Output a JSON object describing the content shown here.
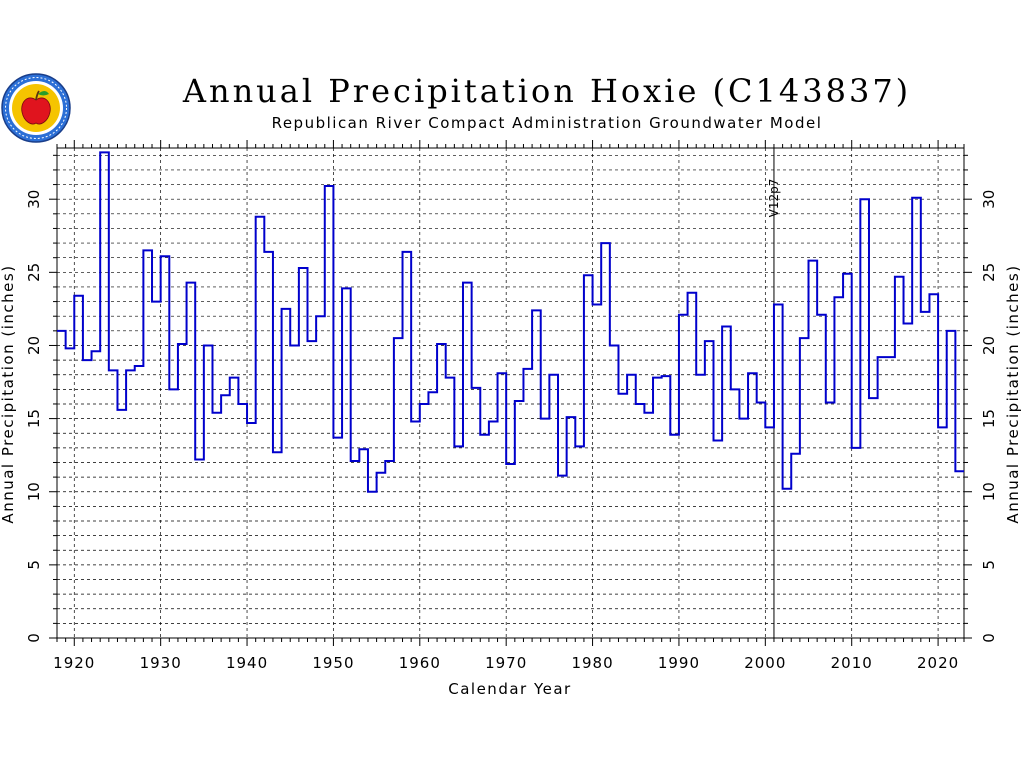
{
  "header": {
    "title": "Annual Precipitation Hoxie (C143837)",
    "subtitle": "Republican River Compact Administration Groundwater Model"
  },
  "logo": {
    "icon": "apple-seal-icon",
    "colors": {
      "ring": "#2b6fd6",
      "inner": "#f5c400",
      "apple": "#e0141e",
      "leaf": "#2a9d2a"
    }
  },
  "chart_data": {
    "type": "line",
    "step": true,
    "title": "Annual Precipitation Hoxie (C143837)",
    "subtitle": "Republican River Compact Administration Groundwater Model",
    "xlabel": "Calendar Year",
    "ylabel": "Annual Precipitation (inches)",
    "ylabel_right": "Annual Precipitation (inches)",
    "xlim": [
      1918,
      2023
    ],
    "ylim": [
      0,
      33.5
    ],
    "xticks": [
      1920,
      1930,
      1940,
      1950,
      1960,
      1970,
      1980,
      1990,
      2000,
      2010,
      2020
    ],
    "yticks": [
      0,
      5,
      10,
      15,
      20,
      25,
      30
    ],
    "grid": true,
    "line_color": "#0000cc",
    "annotation": {
      "label": "V12p7",
      "x": 2001
    },
    "series": [
      {
        "x": [
          1918,
          1919,
          1920,
          1921,
          1922,
          1923,
          1924,
          1925,
          1926,
          1927,
          1928,
          1929,
          1930,
          1931,
          1932,
          1933,
          1934,
          1935,
          1936,
          1937,
          1938,
          1939,
          1940,
          1941,
          1942,
          1943,
          1944,
          1945,
          1946,
          1947,
          1948,
          1949,
          1950,
          1951,
          1952,
          1953,
          1954,
          1955,
          1956,
          1957,
          1958,
          1959,
          1960,
          1961,
          1962,
          1963,
          1964,
          1965,
          1966,
          1967,
          1968,
          1969,
          1970,
          1971,
          1972,
          1973,
          1974,
          1975,
          1976,
          1977,
          1978,
          1979,
          1980,
          1981,
          1982,
          1983,
          1984,
          1985,
          1986,
          1987,
          1988,
          1989,
          1990,
          1991,
          1992,
          1993,
          1994,
          1995,
          1996,
          1997,
          1998,
          1999,
          2000,
          2001,
          2002,
          2003,
          2004,
          2005,
          2006,
          2007,
          2008,
          2009,
          2010,
          2011,
          2012,
          2013,
          2014,
          2015,
          2016,
          2017,
          2018,
          2019,
          2020,
          2021,
          2022
        ],
        "values": [
          21.0,
          19.8,
          23.4,
          19.0,
          19.6,
          33.2,
          18.3,
          15.6,
          18.3,
          18.6,
          26.5,
          23.0,
          26.1,
          17.0,
          20.1,
          24.3,
          12.2,
          20.0,
          15.4,
          16.6,
          17.8,
          16.0,
          14.7,
          28.8,
          26.4,
          12.7,
          22.5,
          20.0,
          25.3,
          20.3,
          22.0,
          30.9,
          13.7,
          23.9,
          12.1,
          12.9,
          10.0,
          11.3,
          12.1,
          20.5,
          26.4,
          14.8,
          16.0,
          16.8,
          20.1,
          17.8,
          13.1,
          24.3,
          17.1,
          13.9,
          14.8,
          18.1,
          11.9,
          16.2,
          18.4,
          22.4,
          15.0,
          18.0,
          11.1,
          15.1,
          13.1,
          24.8,
          22.8,
          27.0,
          20.0,
          16.7,
          18.0,
          16.0,
          15.4,
          17.8,
          17.9,
          13.9,
          22.1,
          23.6,
          18.0,
          20.3,
          13.5,
          21.3,
          17.0,
          15.0,
          18.1,
          16.1,
          14.4,
          22.8,
          10.2,
          12.6,
          20.5,
          25.8,
          22.1,
          16.1,
          23.3,
          24.9,
          13.0,
          30.0,
          16.4,
          19.2,
          19.2,
          24.7,
          21.5,
          30.1,
          22.3,
          23.5,
          14.4,
          21.0,
          11.4
        ]
      }
    ]
  }
}
